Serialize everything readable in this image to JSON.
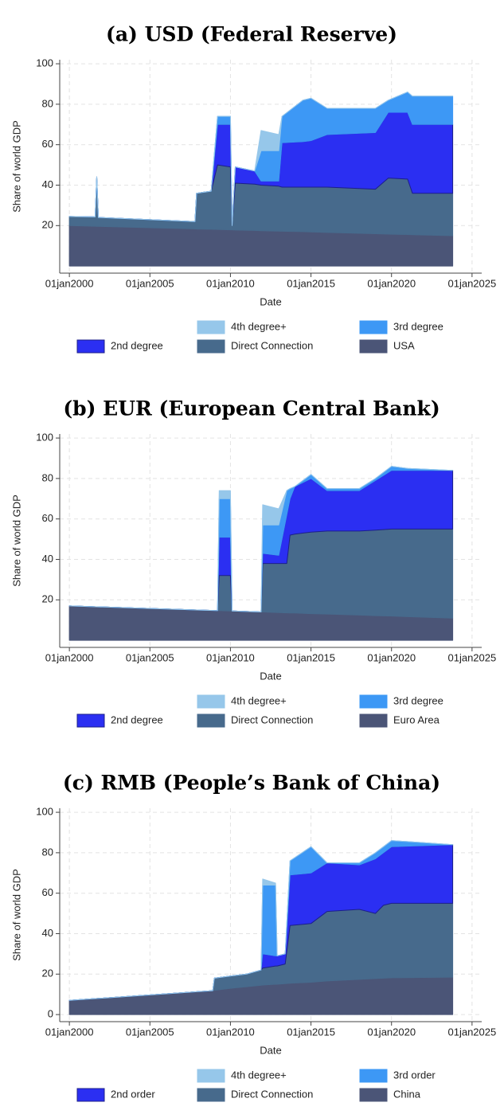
{
  "chart_data": [
    {
      "type": "stacked-area",
      "title": "(a) USD (Federal Reserve)",
      "xlabel": "Date",
      "ylabel": "Share of world GDP",
      "x": [
        2000,
        2001.6,
        2001.7,
        2001.8,
        2007.8,
        2007.9,
        2008.8,
        2009.2,
        2010.0,
        2010.1,
        2010.3,
        2011.5,
        2011.9,
        2013.0,
        2013.2,
        2014.5,
        2015.0,
        2016.0,
        2019.0,
        2019.8,
        2021.0,
        2021.3,
        2023.8
      ],
      "series": [
        {
          "name": "USA",
          "color": "#4b5577",
          "values": [
            20,
            19.7,
            19.6,
            19.6,
            18.4,
            18.3,
            18.2,
            18.1,
            17.9,
            17.9,
            17.8,
            17.6,
            17.5,
            17.3,
            17.2,
            17.0,
            16.9,
            16.6,
            16.0,
            15.8,
            15.6,
            15.5,
            15.0
          ]
        },
        {
          "name": "Direct Connection",
          "color": "#476a8c",
          "values": [
            4.5,
            4.6,
            24.4,
            4.4,
            3.6,
            17.7,
            18.8,
            31.9,
            31.1,
            2.1,
            23.2,
            22.9,
            22.5,
            22.2,
            21.8,
            22.0,
            22.1,
            22.4,
            22.0,
            27.7,
            27.4,
            20.5,
            21.0
          ]
        },
        {
          "name": "2nd degree",
          "color": "#2b2ff2",
          "values": [
            0,
            0,
            0,
            0,
            0,
            0,
            0,
            20,
            21,
            0,
            8,
            6.5,
            2,
            2.5,
            22,
            22.5,
            23,
            26,
            28,
            32.5,
            33,
            34,
            34
          ]
        },
        {
          "name": "3rd degree",
          "color": "#3d98f5",
          "values": [
            0,
            0,
            0,
            0,
            0,
            0,
            0,
            4,
            4,
            0,
            0,
            0,
            15,
            15,
            13,
            20.5,
            21,
            13,
            12,
            6,
            10,
            14,
            14
          ]
        },
        {
          "name": "4th degree+",
          "color": "#96c7ea",
          "values": [
            0,
            0,
            0,
            0,
            0,
            0,
            0,
            0,
            0,
            0,
            0,
            0,
            10,
            8,
            0,
            0,
            0,
            0,
            0,
            0,
            0,
            0,
            0
          ]
        }
      ],
      "xlim": [
        1999.4,
        2025.6
      ],
      "ylim": [
        -3.5,
        102
      ],
      "xticks": [
        {
          "value": 2000,
          "label": "01jan2000"
        },
        {
          "value": 2005,
          "label": "01jan2005"
        },
        {
          "value": 2010,
          "label": "01jan2010"
        },
        {
          "value": 2015,
          "label": "01jan2015"
        },
        {
          "value": 2020,
          "label": "01jan2020"
        },
        {
          "value": 2025,
          "label": "01jan2025"
        }
      ],
      "yticks": [
        20,
        40,
        60,
        80,
        100
      ],
      "grid": true
    },
    {
      "type": "stacked-area",
      "title": "(b) EUR (European Central Bank)",
      "xlabel": "Date",
      "ylabel": "Share of world GDP",
      "x": [
        2000,
        2009.2,
        2009.3,
        2010.0,
        2010.1,
        2011.9,
        2012.0,
        2013.0,
        2013.5,
        2013.7,
        2014.0,
        2015.0,
        2016.0,
        2018.0,
        2019.0,
        2020.0,
        2021.0,
        2023.8
      ],
      "series": [
        {
          "name": "Euro Area",
          "color": "#4b5577",
          "values": [
            17,
            14.7,
            14.7,
            14.5,
            14.5,
            14.0,
            14.0,
            13.7,
            13.6,
            13.5,
            13.5,
            13.2,
            13.0,
            12.5,
            12.2,
            12.0,
            11.7,
            11.0
          ]
        },
        {
          "name": "Direct Connection",
          "color": "#476a8c",
          "values": [
            0,
            0,
            17.3,
            17.5,
            0,
            0,
            24,
            24.3,
            24.4,
            38.5,
            39,
            40.3,
            41,
            41.5,
            42.3,
            43,
            43.3,
            44
          ]
        },
        {
          "name": "2nd degree",
          "color": "#2b2ff2",
          "values": [
            0,
            0,
            19,
            19,
            0,
            0,
            5,
            4,
            24,
            18,
            23.5,
            26.5,
            20,
            20,
            24.5,
            29,
            29,
            29
          ]
        },
        {
          "name": "3rd degree",
          "color": "#3d98f5",
          "values": [
            0,
            0,
            19,
            19,
            0,
            0,
            14,
            15,
            12,
            5,
            0,
            2,
            1,
            1,
            1,
            2,
            1,
            0
          ]
        },
        {
          "name": "4th degree+",
          "color": "#96c7ea",
          "values": [
            0,
            0,
            4,
            4,
            0,
            0,
            10,
            8,
            0,
            0,
            0,
            0,
            0,
            0,
            0,
            0,
            0,
            0
          ]
        }
      ],
      "xlim": [
        1999.4,
        2025.6
      ],
      "ylim": [
        -3.5,
        102
      ],
      "xticks": [
        {
          "value": 2000,
          "label": "01jan2000"
        },
        {
          "value": 2005,
          "label": "01jan2005"
        },
        {
          "value": 2010,
          "label": "01jan2010"
        },
        {
          "value": 2015,
          "label": "01jan2015"
        },
        {
          "value": 2020,
          "label": "01jan2020"
        },
        {
          "value": 2025,
          "label": "01jan2025"
        }
      ],
      "yticks": [
        20,
        40,
        60,
        80,
        100
      ],
      "grid": true
    },
    {
      "type": "stacked-area",
      "title": "(c) RMB (People’s Bank of China)",
      "xlabel": "Date",
      "ylabel": "Share of world GDP",
      "x": [
        2000,
        2008.9,
        2009.0,
        2010.0,
        2011.0,
        2011.9,
        2012.0,
        2012.8,
        2012.9,
        2013.4,
        2013.7,
        2015.0,
        2016.0,
        2018.0,
        2019.0,
        2019.5,
        2020.0,
        2023.8
      ],
      "series": [
        {
          "name": "China",
          "color": "#4b5577",
          "values": [
            7,
            11.8,
            12,
            13,
            13.8,
            14.5,
            14.6,
            15,
            15,
            15.3,
            15.5,
            16,
            16.6,
            17.4,
            17.8,
            18,
            18.2,
            18.5
          ]
        },
        {
          "name": "Direct Connection",
          "color": "#476a8c",
          "values": [
            0,
            0,
            6,
            6,
            6.2,
            7.5,
            8.4,
            9,
            9,
            9.7,
            28.5,
            29,
            34.4,
            34.6,
            32.2,
            36,
            36.8,
            36.5
          ]
        },
        {
          "name": "2nd order",
          "color": "#2b2ff2",
          "values": [
            0,
            0,
            0,
            0,
            0,
            0,
            7,
            5,
            5,
            5,
            25,
            25,
            24,
            22,
            27,
            26,
            28,
            29
          ]
        },
        {
          "name": "3rd order",
          "color": "#3d98f5",
          "values": [
            0,
            0,
            0,
            0,
            0,
            0,
            34,
            35,
            0,
            0,
            7,
            13,
            0,
            1,
            3,
            3,
            3,
            0
          ]
        },
        {
          "name": "4th degree+",
          "color": "#96c7ea",
          "values": [
            0,
            0,
            0,
            0,
            0,
            0,
            3,
            1,
            0,
            0,
            0,
            0,
            0,
            0,
            0,
            0,
            0,
            0
          ]
        }
      ],
      "xlim": [
        1999.4,
        2025.6
      ],
      "ylim": [
        -3.5,
        102
      ],
      "xticks": [
        {
          "value": 2000,
          "label": "01jan2000"
        },
        {
          "value": 2005,
          "label": "01jan2005"
        },
        {
          "value": 2010,
          "label": "01jan2010"
        },
        {
          "value": 2015,
          "label": "01jan2015"
        },
        {
          "value": 2020,
          "label": "01jan2020"
        },
        {
          "value": 2025,
          "label": "01jan2025"
        }
      ],
      "yticks": [
        0,
        20,
        40,
        60,
        80,
        100
      ],
      "grid": true
    }
  ]
}
